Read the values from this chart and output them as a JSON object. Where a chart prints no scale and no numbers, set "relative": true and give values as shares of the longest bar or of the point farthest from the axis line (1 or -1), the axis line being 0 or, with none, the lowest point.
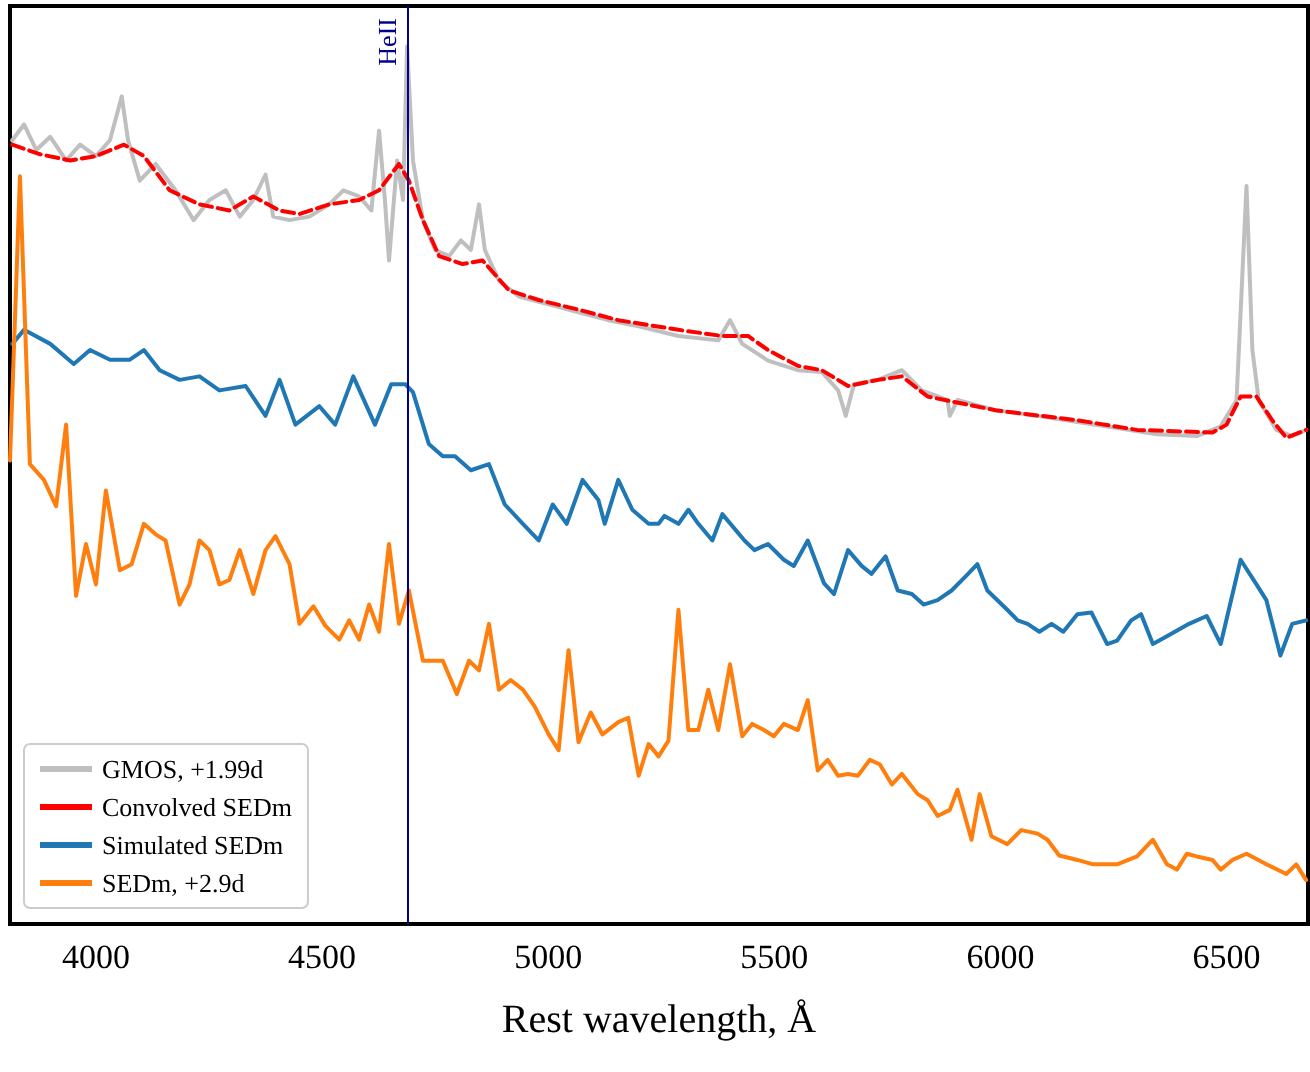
{
  "chart_data": {
    "type": "line",
    "relative": true,
    "xlabel": "Rest wavelength, Å",
    "xlim": [
      3810,
      6680
    ],
    "xticks": [
      {
        "value": 4000,
        "label": "4000"
      },
      {
        "value": 4500,
        "label": "4500"
      },
      {
        "value": 5000,
        "label": "5000"
      },
      {
        "value": 5500,
        "label": "5500"
      },
      {
        "value": 6000,
        "label": "6000"
      },
      {
        "value": 6500,
        "label": "6500"
      }
    ],
    "legend": "bottom left",
    "marker": "none",
    "ref_lines": [
      {
        "axis": "x",
        "value": 4690,
        "label": "HeII",
        "color": "#00008b",
        "line_style": "solid"
      }
    ],
    "series": [
      {
        "name": "GMOS, +1.99d",
        "color": "#bfbfbf",
        "line_style": "solid",
        "x": [
          3815,
          3841,
          3868,
          3899,
          3934,
          3965,
          4000,
          4031,
          4057,
          4071,
          4097,
          4132,
          4176,
          4216,
          4251,
          4287,
          4318,
          4348,
          4375,
          4392,
          4428,
          4472,
          4516,
          4547,
          4582,
          4609,
          4626,
          4639,
          4648,
          4666,
          4679,
          4688,
          4701,
          4723,
          4750,
          4781,
          4807,
          4829,
          4847,
          4860,
          4891,
          4935,
          5001,
          5067,
          5133,
          5200,
          5288,
          5376,
          5402,
          5429,
          5486,
          5552,
          5605,
          5641,
          5658,
          5676,
          5729,
          5782,
          5826,
          5883,
          5888,
          5905,
          5993,
          6082,
          6170,
          6258,
          6346,
          6434,
          6487,
          6522,
          6544,
          6557,
          6571,
          6610,
          6645,
          6676
        ],
        "values": [
          0.893,
          0.911,
          0.882,
          0.897,
          0.87,
          0.888,
          0.875,
          0.893,
          0.943,
          0.893,
          0.847,
          0.866,
          0.836,
          0.802,
          0.825,
          0.836,
          0.806,
          0.825,
          0.854,
          0.806,
          0.802,
          0.806,
          0.82,
          0.836,
          0.829,
          0.813,
          0.904,
          0.825,
          0.756,
          0.87,
          0.825,
          1,
          0.87,
          0.802,
          0.768,
          0.761,
          0.779,
          0.768,
          0.82,
          0.768,
          0.733,
          0.715,
          0.706,
          0.697,
          0.688,
          0.681,
          0.67,
          0.665,
          0.688,
          0.661,
          0.642,
          0.631,
          0.629,
          0.608,
          0.579,
          0.615,
          0.62,
          0.631,
          0.608,
          0.597,
          0.579,
          0.597,
          0.585,
          0.579,
          0.572,
          0.565,
          0.558,
          0.556,
          0.567,
          0.597,
          0.841,
          0.654,
          0.597,
          0.563,
          0.556,
          0.563
        ]
      },
      {
        "name": "Convolved SEDm",
        "color": "#ff0000",
        "line_style": "dashed",
        "x": [
          3815,
          3877,
          3943,
          4000,
          4062,
          4106,
          4163,
          4229,
          4295,
          4348,
          4406,
          4450,
          4516,
          4582,
          4626,
          4670,
          4692,
          4723,
          4759,
          4811,
          4855,
          4913,
          4979,
          5067,
          5155,
          5288,
          5385,
          5442,
          5486,
          5552,
          5605,
          5663,
          5729,
          5782,
          5839,
          5993,
          6170,
          6302,
          6469,
          6500,
          6531,
          6566,
          6601,
          6632,
          6676
        ],
        "values": [
          0.888,
          0.877,
          0.87,
          0.875,
          0.888,
          0.875,
          0.836,
          0.82,
          0.813,
          0.829,
          0.813,
          0.809,
          0.82,
          0.825,
          0.836,
          0.866,
          0.847,
          0.802,
          0.761,
          0.752,
          0.756,
          0.722,
          0.711,
          0.7,
          0.688,
          0.677,
          0.67,
          0.67,
          0.654,
          0.636,
          0.631,
          0.613,
          0.62,
          0.624,
          0.601,
          0.585,
          0.574,
          0.563,
          0.56,
          0.569,
          0.601,
          0.601,
          0.574,
          0.554,
          0.563
        ]
      },
      {
        "name": "Simulated SEDm",
        "color": "#1f77b4",
        "line_style": "solid",
        "x": [
          3815,
          3841,
          3899,
          3951,
          3987,
          4031,
          4075,
          4106,
          4141,
          4185,
          4229,
          4273,
          4331,
          4375,
          4406,
          4441,
          4494,
          4529,
          4569,
          4617,
          4653,
          4684,
          4701,
          4736,
          4767,
          4794,
          4829,
          4869,
          4904,
          4944,
          4979,
          5010,
          5041,
          5076,
          5111,
          5125,
          5155,
          5186,
          5222,
          5244,
          5257,
          5288,
          5310,
          5332,
          5363,
          5385,
          5434,
          5456,
          5486,
          5521,
          5543,
          5574,
          5610,
          5632,
          5663,
          5693,
          5715,
          5746,
          5773,
          5804,
          5830,
          5861,
          5892,
          5923,
          5949,
          5971,
          6015,
          6038,
          6060,
          6086,
          6113,
          6139,
          6170,
          6201,
          6236,
          6258,
          6289,
          6311,
          6337,
          6368,
          6417,
          6456,
          6487,
          6531,
          6566,
          6588,
          6619,
          6645,
          6676
        ],
        "values": [
          0.661,
          0.677,
          0.661,
          0.638,
          0.654,
          0.643,
          0.643,
          0.654,
          0.631,
          0.62,
          0.624,
          0.608,
          0.613,
          0.579,
          0.62,
          0.569,
          0.59,
          0.569,
          0.624,
          0.569,
          0.615,
          0.615,
          0.606,
          0.547,
          0.533,
          0.533,
          0.517,
          0.524,
          0.478,
          0.456,
          0.437,
          0.478,
          0.456,
          0.506,
          0.483,
          0.456,
          0.506,
          0.472,
          0.456,
          0.456,
          0.465,
          0.456,
          0.472,
          0.456,
          0.437,
          0.467,
          0.437,
          0.426,
          0.433,
          0.415,
          0.408,
          0.437,
          0.388,
          0.376,
          0.426,
          0.408,
          0.399,
          0.419,
          0.38,
          0.376,
          0.364,
          0.369,
          0.38,
          0.396,
          0.41,
          0.38,
          0.358,
          0.346,
          0.342,
          0.333,
          0.342,
          0.333,
          0.353,
          0.355,
          0.319,
          0.323,
          0.346,
          0.353,
          0.319,
          0.328,
          0.342,
          0.351,
          0.319,
          0.415,
          0.387,
          0.369,
          0.306,
          0.342,
          0.346
        ]
      },
      {
        "name": "SEDm, +2.9d",
        "color": "#ff7f0e",
        "line_style": "solid",
        "x": [
          3810,
          3832,
          3854,
          3885,
          3912,
          3934,
          3956,
          3978,
          4000,
          4022,
          4053,
          4079,
          4106,
          4132,
          4154,
          4185,
          4207,
          4229,
          4251,
          4273,
          4295,
          4318,
          4348,
          4375,
          4397,
          4428,
          4450,
          4481,
          4507,
          4538,
          4560,
          4582,
          4604,
          4626,
          4648,
          4670,
          4692,
          4723,
          4767,
          4798,
          4825,
          4847,
          4869,
          4891,
          4917,
          4944,
          4970,
          5001,
          5023,
          5045,
          5067,
          5094,
          5120,
          5155,
          5177,
          5200,
          5222,
          5244,
          5266,
          5288,
          5310,
          5332,
          5354,
          5376,
          5402,
          5429,
          5451,
          5477,
          5499,
          5521,
          5552,
          5574,
          5596,
          5618,
          5641,
          5663,
          5685,
          5711,
          5733,
          5760,
          5782,
          5817,
          5839,
          5861,
          5888,
          5905,
          5936,
          5954,
          5980,
          6015,
          6046,
          6082,
          6104,
          6130,
          6170,
          6205,
          6258,
          6302,
          6337,
          6368,
          6390,
          6412,
          6434,
          6469,
          6487,
          6513,
          6544,
          6588,
          6632,
          6654,
          6676
        ],
        "values": [
          0.528,
          0.852,
          0.524,
          0.506,
          0.476,
          0.569,
          0.374,
          0.433,
          0.387,
          0.494,
          0.403,
          0.41,
          0.456,
          0.444,
          0.437,
          0.364,
          0.387,
          0.437,
          0.426,
          0.387,
          0.392,
          0.426,
          0.376,
          0.426,
          0.442,
          0.41,
          0.342,
          0.362,
          0.34,
          0.324,
          0.346,
          0.324,
          0.364,
          0.333,
          0.433,
          0.342,
          0.38,
          0.3,
          0.3,
          0.262,
          0.3,
          0.289,
          0.342,
          0.267,
          0.278,
          0.267,
          0.248,
          0.216,
          0.198,
          0.312,
          0.207,
          0.241,
          0.216,
          0.23,
          0.235,
          0.169,
          0.205,
          0.191,
          0.209,
          0.358,
          0.221,
          0.221,
          0.267,
          0.221,
          0.296,
          0.214,
          0.228,
          0.221,
          0.214,
          0.228,
          0.221,
          0.255,
          0.175,
          0.187,
          0.169,
          0.171,
          0.169,
          0.187,
          0.182,
          0.159,
          0.171,
          0.148,
          0.141,
          0.123,
          0.13,
          0.153,
          0.096,
          0.148,
          0.1,
          0.091,
          0.107,
          0.103,
          0.096,
          0.078,
          0.073,
          0.068,
          0.068,
          0.077,
          0.096,
          0.068,
          0.062,
          0.08,
          0.077,
          0.073,
          0.062,
          0.073,
          0.08,
          0.068,
          0.057,
          0.068,
          0.05
        ]
      }
    ]
  }
}
